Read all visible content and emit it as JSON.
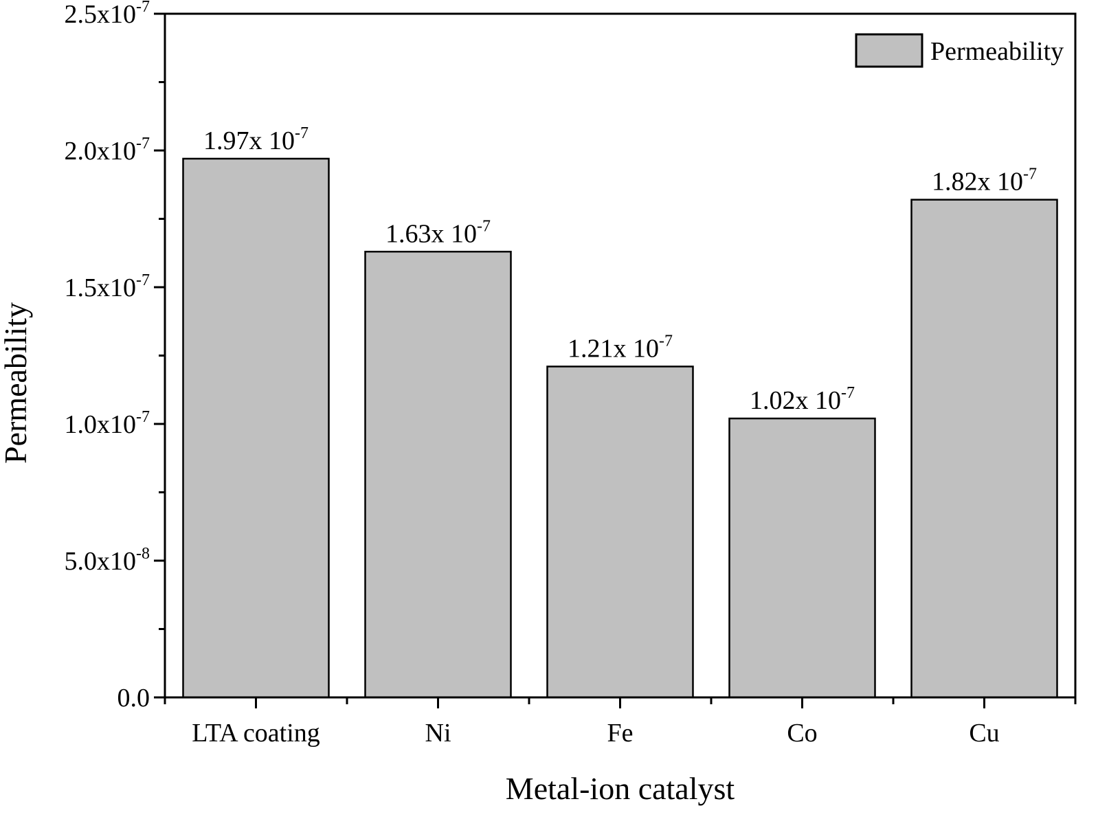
{
  "chart_data": {
    "type": "bar",
    "title": "",
    "xlabel": "Metal-ion catalyst",
    "ylabel": "Permeability",
    "categories": [
      "LTA coating",
      "Ni",
      "Fe",
      "Co",
      "Cu"
    ],
    "series": [
      {
        "name": "Permeability",
        "values": [
          1.97e-07,
          1.63e-07,
          1.21e-07,
          1.02e-07,
          1.82e-07
        ],
        "data_labels": [
          {
            "mantissa": "1.97x 10",
            "exponent": "-7"
          },
          {
            "mantissa": "1.63x 10",
            "exponent": "-7"
          },
          {
            "mantissa": "1.21x 10",
            "exponent": "-7"
          },
          {
            "mantissa": "1.02x 10",
            "exponent": "-7"
          },
          {
            "mantissa": "1.82x 10",
            "exponent": "-7"
          }
        ],
        "color": "#c0c0c0",
        "edge_color": "#000000"
      }
    ],
    "ylim": [
      0,
      2.5e-07
    ],
    "yticks": [
      {
        "value": 0,
        "mantissa": "0.0",
        "exponent": ""
      },
      {
        "value": 5e-08,
        "mantissa": "5.0x10",
        "exponent": "-8"
      },
      {
        "value": 1e-07,
        "mantissa": "1.0x10",
        "exponent": "-7"
      },
      {
        "value": 1.5e-07,
        "mantissa": "1.5x10",
        "exponent": "-7"
      },
      {
        "value": 2e-07,
        "mantissa": "2.0x10",
        "exponent": "-7"
      },
      {
        "value": 2.5e-07,
        "mantissa": "2.5x10",
        "exponent": "-7"
      }
    ],
    "y_minor_ticks_per_major": 1,
    "grid": false,
    "legend": {
      "position": "top-right",
      "entries": [
        "Permeability"
      ]
    }
  }
}
